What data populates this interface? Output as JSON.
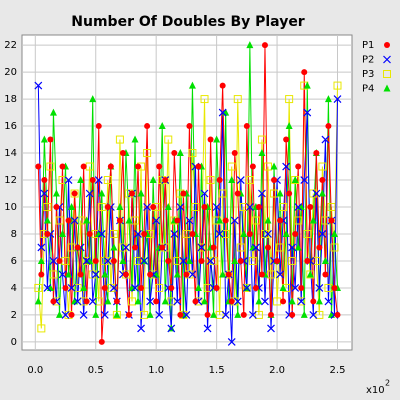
{
  "chart_data": {
    "type": "line",
    "title": "Number Of Doubles By Player",
    "x_axis_multiplier": "x10",
    "x_axis_multiplier_exponent": "2",
    "x": [
      0.025,
      0.05,
      0.075,
      0.1,
      0.125,
      0.15,
      0.175,
      0.2,
      0.225,
      0.25,
      0.275,
      0.3,
      0.325,
      0.35,
      0.375,
      0.4,
      0.425,
      0.45,
      0.475,
      0.5,
      0.525,
      0.55,
      0.575,
      0.6,
      0.625,
      0.65,
      0.675,
      0.7,
      0.725,
      0.75,
      0.775,
      0.8,
      0.825,
      0.85,
      0.875,
      0.9,
      0.925,
      0.95,
      0.975,
      1,
      1.025,
      1.05,
      1.075,
      1.1,
      1.125,
      1.15,
      1.175,
      1.2,
      1.225,
      1.25,
      1.275,
      1.3,
      1.325,
      1.35,
      1.375,
      1.4,
      1.425,
      1.45,
      1.475,
      1.5,
      1.525,
      1.55,
      1.575,
      1.6,
      1.625,
      1.65,
      1.675,
      1.7,
      1.725,
      1.75,
      1.775,
      1.8,
      1.825,
      1.85,
      1.875,
      1.9,
      1.925,
      1.95,
      1.975,
      2,
      2.025,
      2.05,
      2.075,
      2.1,
      2.125,
      2.15,
      2.175,
      2.2,
      2.225,
      2.25,
      2.275,
      2.3,
      2.325,
      2.35,
      2.375,
      2.4,
      2.425,
      2.45,
      2.475,
      2.5
    ],
    "series": [
      {
        "name": "P1",
        "color": "#ff0000",
        "marker": "circle",
        "values": [
          13,
          5,
          12,
          8,
          15,
          3,
          10,
          6,
          13,
          4,
          9,
          2,
          11,
          7,
          5,
          13,
          3,
          8,
          12,
          6,
          16,
          0,
          4,
          10,
          13,
          6,
          3,
          9,
          14,
          5,
          2,
          11,
          7,
          13,
          4,
          8,
          16,
          5,
          10,
          3,
          13,
          7,
          12,
          6,
          4,
          14,
          9,
          2,
          11,
          5,
          16,
          8,
          3,
          13,
          6,
          10,
          2,
          15,
          7,
          4,
          12,
          19,
          9,
          5,
          3,
          14,
          11,
          6,
          2,
          16,
          8,
          13,
          4,
          10,
          5,
          22,
          7,
          2,
          12,
          6,
          9,
          3,
          15,
          11,
          2,
          8,
          13,
          4,
          20,
          6,
          10,
          3,
          14,
          7,
          12,
          5,
          16,
          9,
          4,
          2
        ]
      },
      {
        "name": "P2",
        "color": "#0000ff",
        "marker": "x",
        "values": [
          19,
          7,
          11,
          4,
          8,
          6,
          3,
          10,
          5,
          2,
          12,
          4,
          9,
          3,
          7,
          2,
          6,
          11,
          3,
          5,
          12,
          8,
          2,
          6,
          10,
          4,
          3,
          9,
          5,
          7,
          2,
          11,
          4,
          8,
          1,
          6,
          10,
          3,
          5,
          9,
          2,
          7,
          12,
          4,
          1,
          8,
          3,
          10,
          6,
          2,
          9,
          5,
          13,
          3,
          7,
          11,
          1,
          6,
          4,
          10,
          8,
          17,
          2,
          5,
          0,
          9,
          3,
          12,
          6,
          4,
          10,
          2,
          7,
          4,
          11,
          3,
          8,
          1,
          6,
          12,
          5,
          9,
          13,
          2,
          7,
          4,
          10,
          3,
          12,
          17,
          6,
          2,
          11,
          4,
          8,
          15,
          3,
          9,
          2,
          18
        ]
      },
      {
        "name": "P3",
        "color": "#e8e800",
        "marker": "square",
        "values": [
          4,
          1,
          8,
          10,
          13,
          5,
          3,
          9,
          12,
          6,
          2,
          7,
          11,
          4,
          9,
          3,
          6,
          13,
          5,
          8,
          3,
          10,
          6,
          12,
          4,
          8,
          2,
          15,
          7,
          5,
          11,
          3,
          9,
          6,
          13,
          2,
          14,
          8,
          5,
          10,
          4,
          12,
          7,
          15,
          3,
          9,
          6,
          11,
          2,
          8,
          5,
          14,
          10,
          3,
          7,
          18,
          4,
          12,
          6,
          9,
          2,
          11,
          8,
          5,
          13,
          3,
          18,
          7,
          10,
          4,
          12,
          6,
          9,
          2,
          15,
          8,
          13,
          5,
          11,
          3,
          7,
          10,
          4,
          18,
          6,
          12,
          9,
          3,
          19,
          8,
          5,
          11,
          6,
          2,
          13,
          9,
          4,
          10,
          7,
          19
        ]
      },
      {
        "name": "P4",
        "color": "#00e000",
        "marker": "triangle",
        "values": [
          3,
          6,
          15,
          9,
          4,
          17,
          11,
          2,
          8,
          13,
          5,
          10,
          3,
          7,
          12,
          4,
          9,
          6,
          18,
          2,
          8,
          11,
          5,
          3,
          13,
          7,
          2,
          10,
          6,
          14,
          9,
          4,
          15,
          3,
          11,
          6,
          8,
          2,
          12,
          5,
          7,
          16,
          3,
          10,
          1,
          9,
          5,
          14,
          2,
          11,
          6,
          19,
          8,
          4,
          13,
          3,
          10,
          7,
          2,
          15,
          9,
          5,
          17,
          3,
          12,
          6,
          2,
          11,
          8,
          4,
          22,
          7,
          10,
          3,
          14,
          5,
          9,
          2,
          13,
          6,
          11,
          4,
          8,
          16,
          3,
          12,
          7,
          10,
          2,
          19,
          5,
          9,
          14,
          3,
          11,
          6,
          18,
          2,
          8,
          4
        ]
      }
    ],
    "xlim": [
      -0.11,
      2.62
    ],
    "ylim": [
      -0.6,
      22.75
    ],
    "xticks": [
      {
        "value": 0,
        "label": "0.0"
      },
      {
        "value": 0.5,
        "label": "0.5"
      },
      {
        "value": 1,
        "label": "1.0"
      },
      {
        "value": 1.5,
        "label": "1.5"
      },
      {
        "value": 2,
        "label": "2.0"
      },
      {
        "value": 2.5,
        "label": "2.5"
      }
    ],
    "yticks": [
      0,
      2,
      4,
      6,
      8,
      10,
      12,
      14,
      16,
      18,
      20,
      22
    ],
    "grid": true,
    "legend": "right"
  }
}
